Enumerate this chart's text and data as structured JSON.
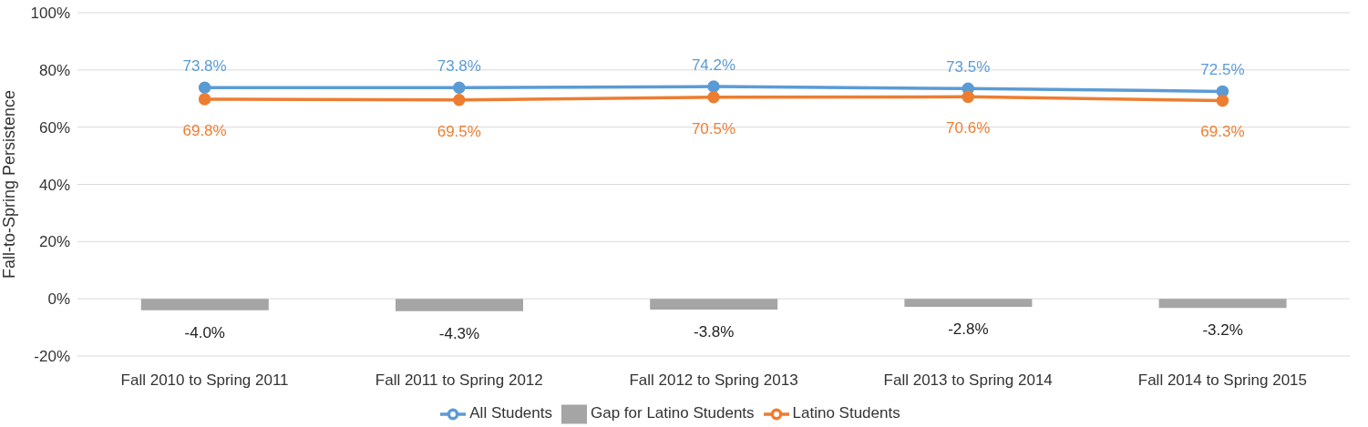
{
  "chart_data": {
    "type": "line",
    "ylabel": "Fall-to-Spring  Persistence",
    "categories": [
      "Fall 2010 to Spring 2011",
      "Fall 2011 to Spring 2012",
      "Fall 2012 to Spring 2013",
      "Fall 2013 to Spring 2014",
      "Fall 2014 to Spring 2015"
    ],
    "series": [
      {
        "name": "Gap for Latino Students",
        "type": "bar",
        "color": "#a5a5a5",
        "values": [
          -4.0,
          -4.3,
          -3.8,
          -2.8,
          -3.2
        ],
        "value_labels": [
          "-4.0%",
          "-4.3%",
          "-3.8%",
          "-2.8%",
          "-3.2%"
        ]
      },
      {
        "name": "All Students",
        "color": "#5b9bd5",
        "values": [
          73.8,
          73.8,
          74.2,
          73.5,
          72.5
        ],
        "value_labels": [
          "73.8%",
          "73.8%",
          "74.2%",
          "73.5%",
          "72.5%"
        ]
      },
      {
        "name": "Latino Students",
        "color": "#ed7d31",
        "values": [
          69.8,
          69.5,
          70.5,
          70.6,
          69.3
        ],
        "value_labels": [
          "69.8%",
          "69.5%",
          "70.5%",
          "70.6%",
          "69.3%"
        ]
      }
    ],
    "ylim": [
      -20,
      100
    ],
    "yticks": [
      {
        "value": -20,
        "label": "-20%"
      },
      {
        "value": 0,
        "label": "0%"
      },
      {
        "value": 20,
        "label": "20%"
      },
      {
        "value": 40,
        "label": "40%"
      },
      {
        "value": 60,
        "label": "60%"
      },
      {
        "value": 80,
        "label": "80%"
      },
      {
        "value": 100,
        "label": "100%"
      }
    ],
    "grid": "y",
    "legend": "bottom",
    "marker": "circle",
    "line_style": "solid"
  }
}
